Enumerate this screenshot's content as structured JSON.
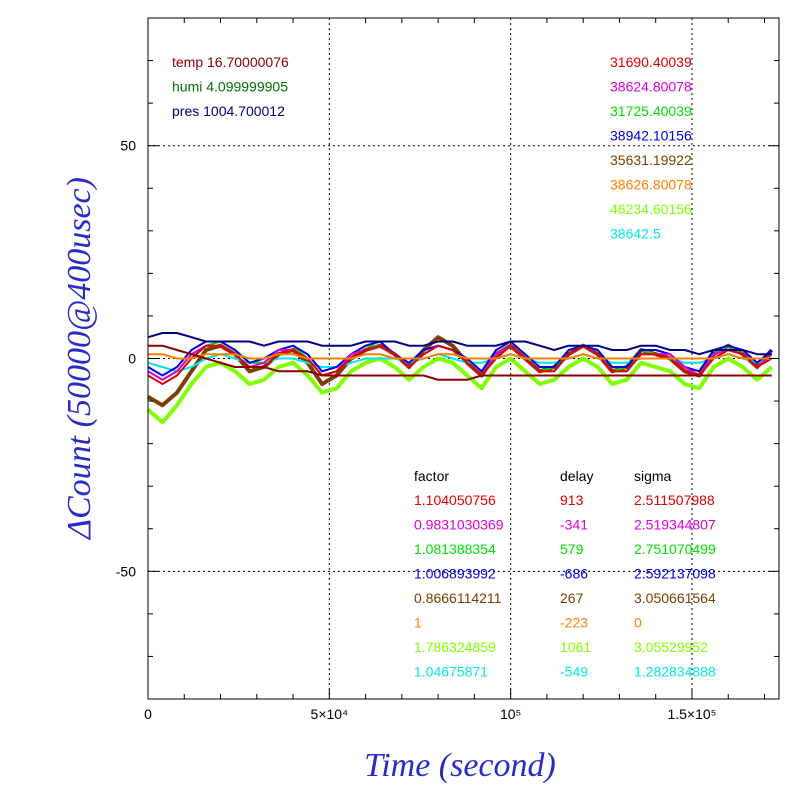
{
  "chart_data": {
    "type": "line",
    "xlabel": "Time (second)",
    "ylabel": "ΔCount (50000@400usec)",
    "xlim": [
      0,
      174000
    ],
    "ylim": [
      -80,
      80
    ],
    "x_ticks": [
      {
        "value": 0,
        "label": "0"
      },
      {
        "value": 50000,
        "label": "5×10⁴"
      },
      {
        "value": 100000,
        "label": "10⁵"
      },
      {
        "value": 150000,
        "label": "1.5×10⁵"
      }
    ],
    "y_ticks": [
      {
        "value": 50,
        "label": "50"
      },
      {
        "value": 0,
        "label": "0"
      },
      {
        "value": -50,
        "label": "-50"
      }
    ],
    "grid": true,
    "colors": {
      "axis_title": "#2a2ac8"
    },
    "env_legend": [
      {
        "text": "temp 16.70000076",
        "color": "#8b0000"
      },
      {
        "text": "humi 4.099999905",
        "color": "#007000"
      },
      {
        "text": "pres 1004.700012",
        "color": "#000080"
      }
    ],
    "series_legend": [
      {
        "text": "31690.40039",
        "color": "#e00000"
      },
      {
        "text": "38624.80078",
        "color": "#e000e0"
      },
      {
        "text": "31725.40039",
        "color": "#00e000"
      },
      {
        "text": "38942.10156",
        "color": "#0000e0"
      },
      {
        "text": "35631.19922",
        "color": "#7a4000"
      },
      {
        "text": "38626.80078",
        "color": "#ff8000"
      },
      {
        "text": "46234.60156",
        "color": "#80ff00"
      },
      {
        "text": "38642.5",
        "color": "#00e8e8"
      }
    ],
    "fit_table": {
      "headers": [
        "factor",
        "delay",
        "sigma"
      ],
      "rows": [
        {
          "factor": "1.104050756",
          "delay": "913",
          "sigma": "2.511507988",
          "color": "#e00000"
        },
        {
          "factor": "0.9831030369",
          "delay": "-341",
          "sigma": "2.519344807",
          "color": "#e000e0"
        },
        {
          "factor": "1.081388354",
          "delay": "579",
          "sigma": "2.751070499",
          "color": "#00e000"
        },
        {
          "factor": "1.006893992",
          "delay": "-686",
          "sigma": "2.592137098",
          "color": "#0000e0"
        },
        {
          "factor": "0.8666114211",
          "delay": "267",
          "sigma": "3.050661564",
          "color": "#7a4000"
        },
        {
          "factor": "1",
          "delay": "-223",
          "sigma": "0",
          "color": "#ff8000"
        },
        {
          "factor": "1.786324859",
          "delay": "1061",
          "sigma": "3.05529952",
          "color": "#80ff00"
        },
        {
          "factor": "1.04675871",
          "delay": "-549",
          "sigma": "1.282834888",
          "color": "#00e8e8"
        }
      ]
    },
    "series": [
      {
        "color": "#7a4000",
        "x": [
          0,
          4000,
          8000,
          12000,
          16000,
          20000,
          24000,
          28000,
          32000,
          36000,
          40000,
          44000,
          48000,
          52000,
          56000,
          60000,
          64000,
          68000,
          72000,
          76000,
          80000,
          84000,
          88000,
          92000,
          96000,
          100000,
          104000,
          108000,
          112000,
          116000,
          120000,
          124000,
          128000,
          132000,
          136000,
          140000,
          144000,
          148000,
          152000,
          156000,
          160000,
          164000,
          168000,
          172000
        ],
        "y": [
          -9,
          -11,
          -8,
          -3,
          2,
          3,
          1,
          -3,
          -2,
          1,
          2,
          -1,
          -6,
          -4,
          0,
          2,
          3,
          1,
          -2,
          2,
          5,
          3,
          -1,
          -4,
          1,
          3,
          0,
          -3,
          -2,
          1,
          3,
          1,
          -3,
          -2,
          2,
          1,
          0,
          -3,
          -4,
          1,
          3,
          1,
          -2,
          2
        ]
      },
      {
        "color": "#80ff00",
        "x": [
          0,
          4000,
          8000,
          12000,
          16000,
          20000,
          24000,
          28000,
          32000,
          36000,
          40000,
          44000,
          48000,
          52000,
          56000,
          60000,
          64000,
          68000,
          72000,
          76000,
          80000,
          84000,
          88000,
          92000,
          96000,
          100000,
          104000,
          108000,
          112000,
          116000,
          120000,
          124000,
          128000,
          132000,
          136000,
          140000,
          144000,
          148000,
          152000,
          156000,
          160000,
          164000,
          168000,
          172000
        ],
        "y": [
          -12,
          -15,
          -11,
          -6,
          -2,
          -1,
          -3,
          -6,
          -5,
          -2,
          -1,
          -4,
          -8,
          -7,
          -3,
          -1,
          0,
          -2,
          -5,
          -2,
          0,
          -1,
          -4,
          -7,
          -2,
          0,
          -3,
          -6,
          -5,
          -2,
          0,
          -2,
          -6,
          -5,
          -1,
          -2,
          -3,
          -6,
          -7,
          -2,
          0,
          -2,
          -5,
          -2
        ]
      },
      {
        "color": "#00e8e8",
        "x": [
          0,
          4000,
          8000,
          12000,
          16000,
          20000,
          24000,
          28000,
          32000,
          36000,
          40000,
          44000,
          48000,
          52000,
          56000,
          60000,
          64000,
          68000,
          72000,
          76000,
          80000,
          84000,
          88000,
          92000,
          96000,
          100000,
          104000,
          108000,
          112000,
          116000,
          120000,
          124000,
          128000,
          132000,
          136000,
          140000,
          144000,
          148000,
          152000,
          156000,
          160000,
          164000,
          168000,
          172000
        ],
        "y": [
          -1,
          -2,
          -3,
          -2,
          0,
          1,
          0,
          -1,
          -1,
          0,
          0,
          -1,
          -2,
          -2,
          -1,
          0,
          0,
          0,
          -1,
          0,
          1,
          0,
          -1,
          -1,
          0,
          1,
          0,
          -1,
          -1,
          0,
          1,
          0,
          -1,
          -1,
          0,
          0,
          0,
          -1,
          -1,
          0,
          1,
          0,
          -1,
          0
        ]
      },
      {
        "color": "#00e000",
        "x": [
          0,
          4000,
          8000,
          12000,
          16000,
          20000,
          24000,
          28000,
          32000,
          36000,
          40000,
          44000,
          48000,
          52000,
          56000,
          60000,
          64000,
          68000,
          72000,
          76000,
          80000,
          84000,
          88000,
          92000,
          96000,
          100000,
          104000,
          108000,
          112000,
          116000,
          120000,
          124000,
          128000,
          132000,
          136000,
          140000,
          144000,
          148000,
          152000,
          156000,
          160000,
          164000,
          168000,
          172000
        ],
        "y": [
          -3,
          -5,
          -3,
          1,
          3,
          4,
          2,
          -1,
          -1,
          2,
          3,
          0,
          -4,
          -3,
          1,
          3,
          3,
          1,
          -2,
          1,
          3,
          2,
          -1,
          -4,
          1,
          3,
          0,
          -3,
          -2,
          1,
          3,
          1,
          -3,
          -2,
          2,
          1,
          1,
          -2,
          -4,
          1,
          3,
          1,
          -2,
          1
        ]
      },
      {
        "color": "#0000e0",
        "x": [
          0,
          4000,
          8000,
          12000,
          16000,
          20000,
          24000,
          28000,
          32000,
          36000,
          40000,
          44000,
          48000,
          52000,
          56000,
          60000,
          64000,
          68000,
          72000,
          76000,
          80000,
          84000,
          88000,
          92000,
          96000,
          100000,
          104000,
          108000,
          112000,
          116000,
          120000,
          124000,
          128000,
          132000,
          136000,
          140000,
          144000,
          148000,
          152000,
          156000,
          160000,
          164000,
          168000,
          172000
        ],
        "y": [
          -2,
          -4,
          -2,
          2,
          4,
          4,
          2,
          -1,
          0,
          2,
          3,
          1,
          -3,
          -2,
          1,
          3,
          4,
          1,
          -1,
          2,
          3,
          2,
          0,
          -3,
          2,
          4,
          1,
          -2,
          -2,
          2,
          3,
          2,
          -2,
          -2,
          2,
          2,
          1,
          -2,
          -3,
          2,
          3,
          2,
          -1,
          2
        ]
      },
      {
        "color": "#e000e0",
        "x": [
          0,
          4000,
          8000,
          12000,
          16000,
          20000,
          24000,
          28000,
          32000,
          36000,
          40000,
          44000,
          48000,
          52000,
          56000,
          60000,
          64000,
          68000,
          72000,
          76000,
          80000,
          84000,
          88000,
          92000,
          96000,
          100000,
          104000,
          108000,
          112000,
          116000,
          120000,
          124000,
          128000,
          132000,
          136000,
          140000,
          144000,
          148000,
          152000,
          156000,
          160000,
          164000,
          168000,
          172000
        ],
        "y": [
          -3,
          -5,
          -3,
          1,
          3,
          3,
          1,
          -2,
          -1,
          2,
          2,
          0,
          -4,
          -3,
          1,
          2,
          3,
          1,
          -2,
          1,
          3,
          2,
          -1,
          -4,
          1,
          3,
          0,
          -3,
          -3,
          1,
          3,
          1,
          -3,
          -3,
          1,
          1,
          1,
          -2,
          -4,
          1,
          2,
          1,
          -2,
          1
        ]
      },
      {
        "color": "#e00000",
        "x": [
          0,
          4000,
          8000,
          12000,
          16000,
          20000,
          24000,
          28000,
          32000,
          36000,
          40000,
          44000,
          48000,
          52000,
          56000,
          60000,
          64000,
          68000,
          72000,
          76000,
          80000,
          84000,
          88000,
          92000,
          96000,
          100000,
          104000,
          108000,
          112000,
          116000,
          120000,
          124000,
          128000,
          132000,
          136000,
          140000,
          144000,
          148000,
          152000,
          156000,
          160000,
          164000,
          168000,
          172000
        ],
        "y": [
          -4,
          -6,
          -4,
          0,
          3,
          3,
          1,
          -2,
          -2,
          1,
          2,
          0,
          -4,
          -3,
          0,
          2,
          3,
          1,
          -2,
          1,
          3,
          2,
          -1,
          -4,
          0,
          3,
          0,
          -3,
          -3,
          1,
          3,
          1,
          -3,
          -3,
          1,
          1,
          0,
          -3,
          -4,
          0,
          2,
          1,
          -2,
          0
        ]
      },
      {
        "color": "#ff8000",
        "x": [
          0,
          4000,
          8000,
          12000,
          16000,
          20000,
          24000,
          28000,
          32000,
          36000,
          40000,
          44000,
          48000,
          52000,
          56000,
          60000,
          64000,
          68000,
          72000,
          76000,
          80000,
          84000,
          88000,
          92000,
          96000,
          100000,
          104000,
          108000,
          112000,
          116000,
          120000,
          124000,
          128000,
          132000,
          136000,
          140000,
          144000,
          148000,
          152000,
          156000,
          160000,
          164000,
          168000,
          172000
        ],
        "y": [
          1,
          1,
          0,
          0,
          1,
          1,
          1,
          0,
          0,
          1,
          1,
          0,
          0,
          0,
          0,
          1,
          1,
          0,
          0,
          0,
          1,
          1,
          0,
          0,
          0,
          1,
          0,
          0,
          0,
          0,
          1,
          0,
          0,
          0,
          0,
          0,
          0,
          0,
          0,
          0,
          1,
          0,
          0,
          0
        ]
      },
      {
        "color": "#000080",
        "x": [
          0,
          4000,
          8000,
          12000,
          16000,
          20000,
          24000,
          28000,
          32000,
          36000,
          40000,
          44000,
          48000,
          52000,
          56000,
          60000,
          64000,
          68000,
          72000,
          76000,
          80000,
          84000,
          88000,
          92000,
          96000,
          100000,
          104000,
          108000,
          112000,
          116000,
          120000,
          124000,
          128000,
          132000,
          136000,
          140000,
          144000,
          148000,
          152000,
          156000,
          160000,
          164000,
          168000,
          172000
        ],
        "y": [
          5,
          6,
          6,
          5,
          4,
          4,
          4,
          4,
          3,
          4,
          4,
          4,
          3,
          3,
          3,
          4,
          4,
          4,
          3,
          3,
          4,
          4,
          3,
          3,
          3,
          4,
          4,
          3,
          2,
          3,
          3,
          3,
          2,
          2,
          3,
          3,
          2,
          2,
          1,
          2,
          2,
          2,
          1,
          1
        ]
      },
      {
        "color": "#8b0000",
        "x": [
          0,
          4000,
          8000,
          12000,
          16000,
          20000,
          24000,
          28000,
          32000,
          36000,
          40000,
          44000,
          48000,
          52000,
          56000,
          60000,
          64000,
          68000,
          72000,
          76000,
          80000,
          84000,
          88000,
          92000,
          96000,
          100000,
          104000,
          108000,
          112000,
          116000,
          120000,
          124000,
          128000,
          132000,
          136000,
          140000,
          144000,
          148000,
          152000,
          156000,
          160000,
          164000,
          168000,
          172000
        ],
        "y": [
          3,
          3,
          2,
          1,
          0,
          -1,
          -2,
          -2,
          -2,
          -3,
          -3,
          -3,
          -4,
          -4,
          -4,
          -4,
          -4,
          -4,
          -4,
          -4,
          -5,
          -5,
          -5,
          -4,
          -4,
          -4,
          -4,
          -4,
          -4,
          -4,
          -4,
          -4,
          -4,
          -4,
          -4,
          -4,
          -4,
          -4,
          -4,
          -4,
          -4,
          -4,
          -4,
          -4
        ]
      }
    ]
  }
}
